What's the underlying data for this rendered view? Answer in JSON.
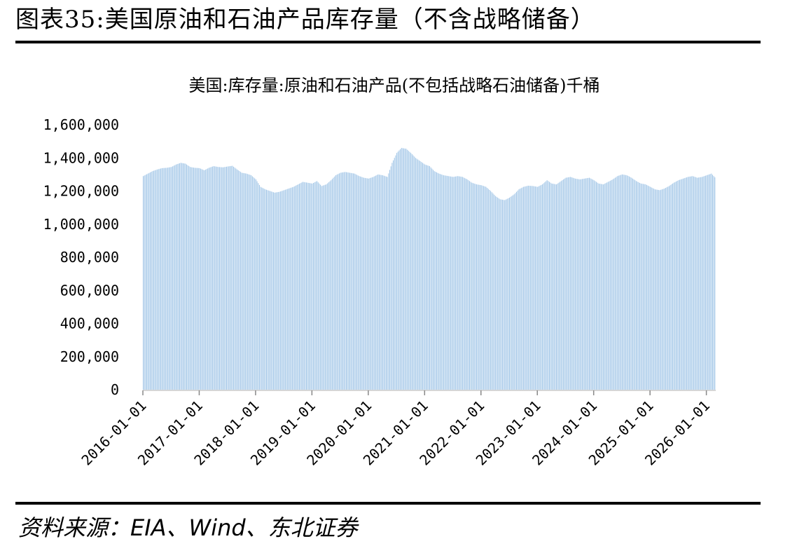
{
  "header": {
    "figure_title": "图表35:美国原油和石油产品库存量（不含战略储备）"
  },
  "footer": {
    "source": "资料来源：EIA、Wind、东北证券"
  },
  "chart_data": {
    "type": "bar",
    "title": "美国:库存量:原油和石油产品(不包括战略石油储备)千桶",
    "xlabel": "",
    "ylabel": "",
    "ylim": [
      0,
      1600000
    ],
    "yticks": [
      "0",
      "200,000",
      "400,000",
      "600,000",
      "800,000",
      "1,000,000",
      "1,200,000",
      "1,400,000",
      "1,600,000"
    ],
    "xticks": [
      "2016-01-01",
      "2017-01-01",
      "2018-01-01",
      "2019-01-01",
      "2020-01-01",
      "2021-01-01",
      "2022-01-01",
      "2023-01-01",
      "2024-01-01",
      "2025-01-01",
      "2026-01-01"
    ],
    "x_range": [
      "2016-01-01",
      "2026-03-01"
    ],
    "grid": false,
    "legend": "none",
    "bar_color": "#9DC3E6",
    "series": [
      {
        "frequency": "monthly",
        "start": "2016-01",
        "values": [
          1290000,
          1305000,
          1320000,
          1330000,
          1338000,
          1340000,
          1345000,
          1360000,
          1370000,
          1365000,
          1345000,
          1340000,
          1338000,
          1325000,
          1340000,
          1350000,
          1345000,
          1343000,
          1348000,
          1352000,
          1330000,
          1310000,
          1305000,
          1295000,
          1270000,
          1225000,
          1210000,
          1200000,
          1190000,
          1195000,
          1205000,
          1215000,
          1225000,
          1240000,
          1255000,
          1250000,
          1245000,
          1260000,
          1230000,
          1240000,
          1265000,
          1295000,
          1310000,
          1315000,
          1310000,
          1305000,
          1290000,
          1280000,
          1275000,
          1285000,
          1300000,
          1295000,
          1285000,
          1370000,
          1430000,
          1460000,
          1455000,
          1430000,
          1400000,
          1380000,
          1360000,
          1350000,
          1320000,
          1305000,
          1295000,
          1290000,
          1285000,
          1290000,
          1285000,
          1270000,
          1250000,
          1240000,
          1235000,
          1225000,
          1200000,
          1170000,
          1150000,
          1145000,
          1160000,
          1180000,
          1210000,
          1225000,
          1232000,
          1230000,
          1225000,
          1240000,
          1265000,
          1245000,
          1240000,
          1260000,
          1280000,
          1285000,
          1275000,
          1270000,
          1275000,
          1280000,
          1265000,
          1245000,
          1240000,
          1255000,
          1270000,
          1290000,
          1300000,
          1295000,
          1280000,
          1260000,
          1245000,
          1240000,
          1225000,
          1210000,
          1205000,
          1215000,
          1230000,
          1250000,
          1265000,
          1275000,
          1285000,
          1290000,
          1280000,
          1285000,
          1295000,
          1305000,
          1275000,
          1280000,
          1285000
        ]
      }
    ]
  }
}
